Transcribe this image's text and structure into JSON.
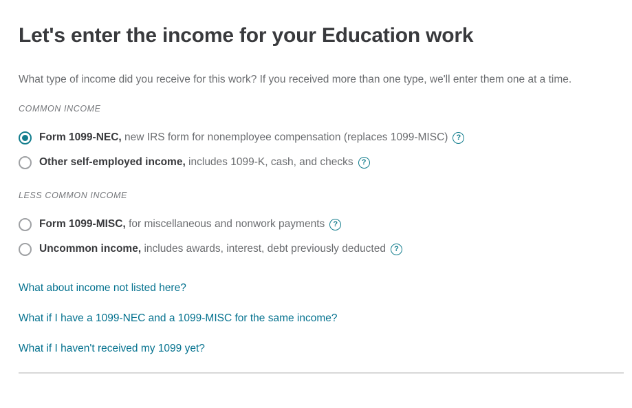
{
  "page": {
    "title": "Let's enter the income for your Education work",
    "subtitle": "What type of income did you receive for this work? If you received more than one type, we'll enter them one at a time."
  },
  "sections": [
    {
      "label": "COMMON INCOME",
      "options": [
        {
          "name": "Form 1099-NEC,",
          "desc": " new IRS form for nonemployee compensation (replaces 1099-MISC)",
          "selected": true
        },
        {
          "name": "Other self-employed income,",
          "desc": " includes 1099-K, cash, and checks",
          "selected": false
        }
      ]
    },
    {
      "label": "LESS COMMON INCOME",
      "options": [
        {
          "name": "Form 1099-MISC,",
          "desc": " for miscellaneous and nonwork payments",
          "selected": false
        },
        {
          "name": "Uncommon income,",
          "desc": " includes awards, interest, debt previously deducted",
          "selected": false
        }
      ]
    }
  ],
  "links": [
    "What about income not listed here?",
    "What if I have a 1099-NEC and a 1099-MISC for the same income?",
    "What if I haven't received my 1099 yet?"
  ],
  "icons": {
    "help": "?"
  },
  "colors": {
    "accent_teal": "#127d8d",
    "link_teal": "#05728f",
    "heading_text": "#393a3d",
    "body_text": "#6b6d70",
    "divider": "#d8d8d8"
  }
}
